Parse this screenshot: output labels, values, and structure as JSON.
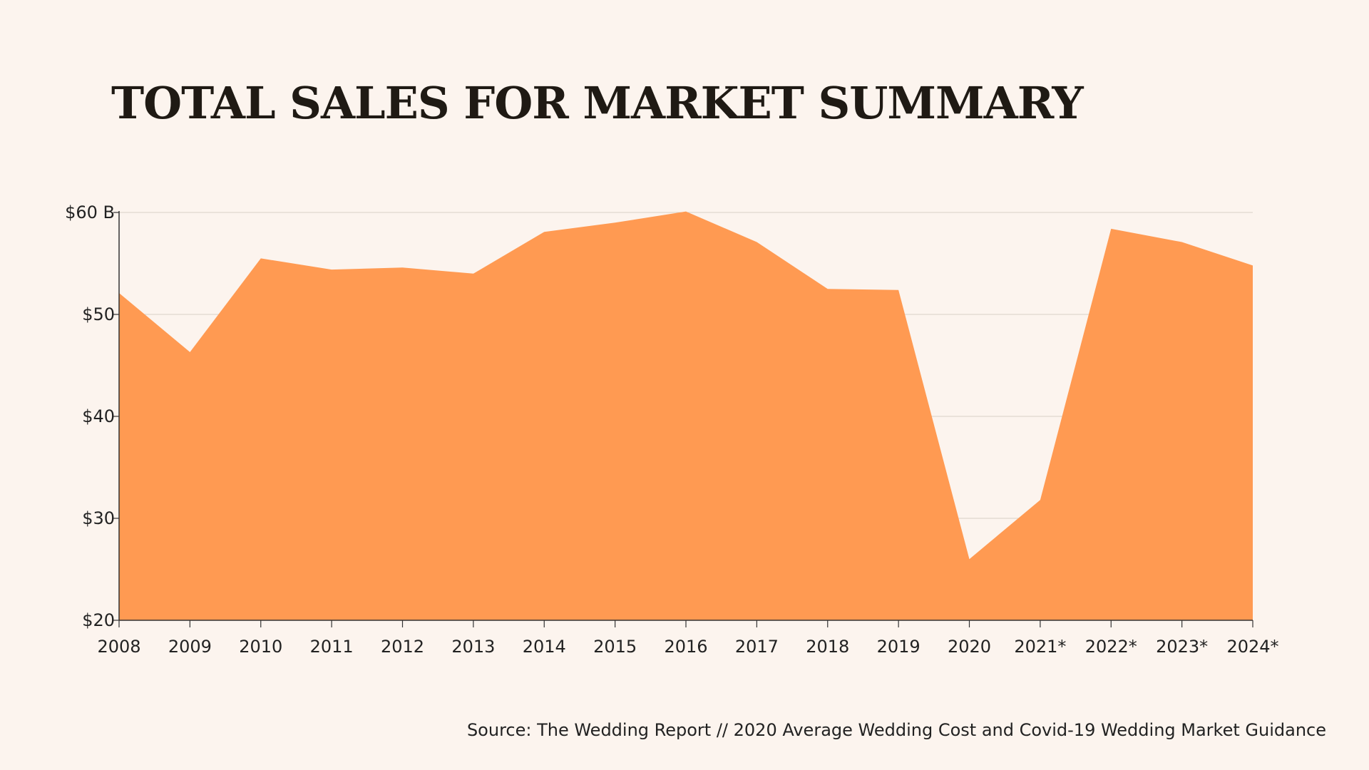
{
  "title": "TOTAL SALES FOR MARKET SUMMARY",
  "source": "Source: The Wedding Report // 2020 Average Wedding Cost and Covid-19 Wedding Market Guidance",
  "colors": {
    "background": "#fcf4ee",
    "area": "#ff9a52",
    "grid": "#d9cfc6",
    "axis": "#333333"
  },
  "chart_data": {
    "type": "area",
    "title": "TOTAL SALES FOR MARKET SUMMARY",
    "categories": [
      "2008",
      "2009",
      "2010",
      "2011",
      "2012",
      "2013",
      "2014",
      "2015",
      "2016",
      "2017",
      "2018",
      "2019",
      "2020",
      "2021*",
      "2022*",
      "2023*",
      "2024*"
    ],
    "series": [
      {
        "values": [
          52.1,
          46.3,
          55.5,
          54.4,
          54.6,
          54.0,
          58.1,
          59.0,
          60.1,
          57.1,
          52.5,
          52.4,
          26.0,
          31.8,
          58.4,
          57.1,
          54.8
        ]
      }
    ],
    "y_ticks": [
      "$60 B",
      "$50",
      "$40",
      "$30",
      "$20"
    ],
    "ylim": [
      20,
      60
    ],
    "grid": true,
    "legend": "none",
    "xlabel": "",
    "ylabel": ""
  }
}
